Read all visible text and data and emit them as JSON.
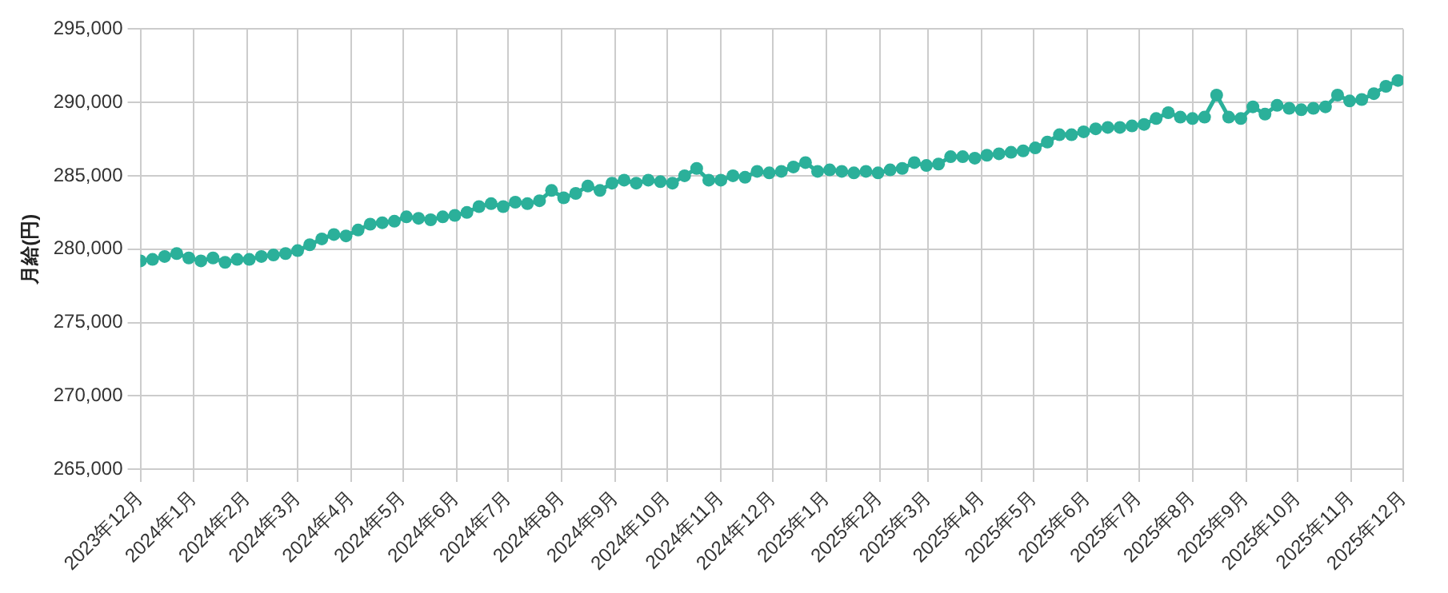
{
  "chart_data": {
    "type": "line",
    "ylabel": "月給(円)",
    "color": "#2bb09a",
    "marker": "circle",
    "grid": true,
    "legend": false,
    "xlim": [
      "2023-12-01",
      "2025-12-01"
    ],
    "xticks": [
      {
        "value": "2023-12-01",
        "label": "2023年12月"
      },
      {
        "value": "2024-01-01",
        "label": "2024年1月"
      },
      {
        "value": "2024-02-01",
        "label": "2024年2月"
      },
      {
        "value": "2024-03-01",
        "label": "2024年3月"
      },
      {
        "value": "2024-04-01",
        "label": "2024年4月"
      },
      {
        "value": "2024-05-01",
        "label": "2024年5月"
      },
      {
        "value": "2024-06-01",
        "label": "2024年6月"
      },
      {
        "value": "2024-07-01",
        "label": "2024年7月"
      },
      {
        "value": "2024-08-01",
        "label": "2024年8月"
      },
      {
        "value": "2024-09-01",
        "label": "2024年9月"
      },
      {
        "value": "2024-10-01",
        "label": "2024年10月"
      },
      {
        "value": "2024-11-01",
        "label": "2024年11月"
      },
      {
        "value": "2024-12-01",
        "label": "2024年12月"
      },
      {
        "value": "2025-01-01",
        "label": "2025年1月"
      },
      {
        "value": "2025-02-01",
        "label": "2025年2月"
      },
      {
        "value": "2025-03-01",
        "label": "2025年3月"
      },
      {
        "value": "2025-04-01",
        "label": "2025年4月"
      },
      {
        "value": "2025-05-01",
        "label": "2025年5月"
      },
      {
        "value": "2025-06-01",
        "label": "2025年6月"
      },
      {
        "value": "2025-07-01",
        "label": "2025年7月"
      },
      {
        "value": "2025-08-01",
        "label": "2025年8月"
      },
      {
        "value": "2025-09-01",
        "label": "2025年9月"
      },
      {
        "value": "2025-10-01",
        "label": "2025年10月"
      },
      {
        "value": "2025-11-01",
        "label": "2025年11月"
      },
      {
        "value": "2025-12-01",
        "label": "2025年12月"
      }
    ],
    "ylim": [
      265000,
      295000
    ],
    "yticks": [
      {
        "value": 265000,
        "label": "265,000"
      },
      {
        "value": 270000,
        "label": "270,000"
      },
      {
        "value": 275000,
        "label": "275,000"
      },
      {
        "value": 280000,
        "label": "280,000"
      },
      {
        "value": 285000,
        "label": "285,000"
      },
      {
        "value": 290000,
        "label": "290,000"
      },
      {
        "value": 295000,
        "label": "295,000"
      }
    ],
    "x": [
      "2023-12-01",
      "2023-12-08",
      "2023-12-15",
      "2023-12-22",
      "2023-12-29",
      "2024-01-05",
      "2024-01-12",
      "2024-01-19",
      "2024-01-26",
      "2024-02-02",
      "2024-02-09",
      "2024-02-16",
      "2024-02-23",
      "2024-03-01",
      "2024-03-08",
      "2024-03-15",
      "2024-03-22",
      "2024-03-29",
      "2024-04-05",
      "2024-04-12",
      "2024-04-19",
      "2024-04-26",
      "2024-05-03",
      "2024-05-10",
      "2024-05-17",
      "2024-05-24",
      "2024-05-31",
      "2024-06-07",
      "2024-06-14",
      "2024-06-21",
      "2024-06-28",
      "2024-07-05",
      "2024-07-12",
      "2024-07-19",
      "2024-07-26",
      "2024-08-02",
      "2024-08-09",
      "2024-08-16",
      "2024-08-23",
      "2024-08-30",
      "2024-09-06",
      "2024-09-13",
      "2024-09-20",
      "2024-09-27",
      "2024-10-04",
      "2024-10-11",
      "2024-10-18",
      "2024-10-25",
      "2024-11-01",
      "2024-11-08",
      "2024-11-15",
      "2024-11-22",
      "2024-11-29",
      "2024-12-06",
      "2024-12-13",
      "2024-12-20",
      "2024-12-27",
      "2025-01-03",
      "2025-01-10",
      "2025-01-17",
      "2025-01-24",
      "2025-01-31",
      "2025-02-07",
      "2025-02-14",
      "2025-02-21",
      "2025-02-28",
      "2025-03-07",
      "2025-03-14",
      "2025-03-21",
      "2025-03-28",
      "2025-04-04",
      "2025-04-11",
      "2025-04-18",
      "2025-04-25",
      "2025-05-02",
      "2025-05-09",
      "2025-05-16",
      "2025-05-23",
      "2025-05-30",
      "2025-06-06",
      "2025-06-13",
      "2025-06-20",
      "2025-06-27",
      "2025-07-04",
      "2025-07-11",
      "2025-07-18",
      "2025-07-25",
      "2025-08-01",
      "2025-08-08",
      "2025-08-15",
      "2025-08-22",
      "2025-08-29",
      "2025-09-05",
      "2025-09-12",
      "2025-09-19",
      "2025-09-26",
      "2025-10-03",
      "2025-10-10",
      "2025-10-17",
      "2025-10-24",
      "2025-10-31",
      "2025-11-07",
      "2025-11-14",
      "2025-11-21",
      "2025-11-28"
    ],
    "values": [
      279200,
      279300,
      279500,
      279700,
      279400,
      279200,
      279400,
      279100,
      279300,
      279300,
      279500,
      279600,
      279700,
      279900,
      280300,
      280700,
      281000,
      280900,
      281300,
      281700,
      281800,
      281900,
      282200,
      282100,
      282000,
      282200,
      282300,
      282500,
      282900,
      283100,
      282900,
      283200,
      283100,
      283300,
      284000,
      283500,
      283800,
      284300,
      284000,
      284500,
      284700,
      284500,
      284700,
      284600,
      284500,
      285000,
      285500,
      284700,
      284700,
      285000,
      284900,
      285300,
      285200,
      285300,
      285600,
      285900,
      285300,
      285400,
      285300,
      285200,
      285300,
      285200,
      285400,
      285500,
      285900,
      285700,
      285800,
      286300,
      286300,
      286200,
      286400,
      286500,
      286600,
      286700,
      286900,
      287300,
      287800,
      287800,
      288000,
      288200,
      288300,
      288300,
      288400,
      288500,
      288900,
      289300,
      289000,
      288900,
      289000,
      290500,
      289000,
      288900,
      289700,
      289200,
      289800,
      289600,
      289500,
      289600,
      289700,
      290500,
      290100,
      290200,
      290600,
      291100,
      291500
    ]
  }
}
